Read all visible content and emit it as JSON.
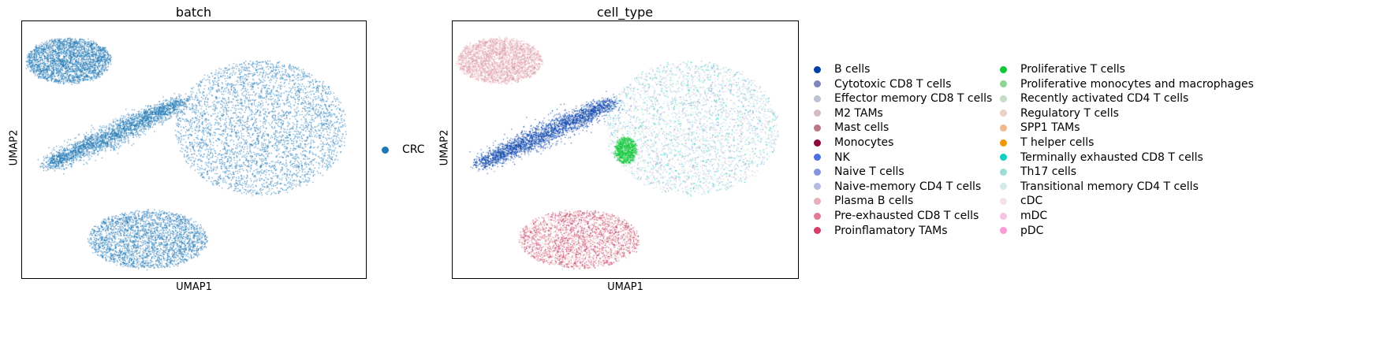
{
  "chart_data": [
    {
      "type": "scatter",
      "title": "batch",
      "xlabel": "UMAP1",
      "ylabel": "UMAP2",
      "legend": {
        "placement": "right",
        "entries": [
          {
            "label": "CRC",
            "color": "#1f77b4"
          }
        ]
      },
      "clusters": [
        {
          "label": "CRC",
          "shape": "top-left blob",
          "center": [
            -8.5,
            9.5
          ],
          "extent": [
            3.2,
            2.0
          ],
          "relative_density": 1.0
        },
        {
          "label": "CRC",
          "shape": "elongated diagonal",
          "center": [
            -5.0,
            3.0
          ],
          "extent": [
            5.0,
            1.6
          ],
          "relative_density": 1.0
        },
        {
          "label": "CRC",
          "shape": "large fan",
          "center": [
            6.0,
            3.5
          ],
          "extent": [
            6.5,
            6.0
          ],
          "relative_density": 1.4
        },
        {
          "label": "CRC",
          "shape": "bottom blob",
          "center": [
            -2.5,
            -6.5
          ],
          "extent": [
            4.5,
            2.6
          ],
          "relative_density": 1.0
        }
      ],
      "grid": false
    },
    {
      "type": "scatter",
      "title": "cell_type",
      "xlabel": "UMAP1",
      "ylabel": "UMAP2",
      "grid": false,
      "legend": {
        "placement": "right",
        "columns": 2,
        "entries": [
          {
            "label": "B cells",
            "color": "#023fa5"
          },
          {
            "label": "Cytotoxic CD8 T cells",
            "color": "#7d87b9"
          },
          {
            "label": "Effector memory CD8 T cells",
            "color": "#bec1d4"
          },
          {
            "label": "M2 TAMs",
            "color": "#d6bcc0"
          },
          {
            "label": "Mast cells",
            "color": "#bb7784"
          },
          {
            "label": "Monocytes",
            "color": "#8e063b"
          },
          {
            "label": "NK",
            "color": "#4a6fe3"
          },
          {
            "label": "Naive T cells",
            "color": "#8595e1"
          },
          {
            "label": "Naive-memory CD4 T cells",
            "color": "#b5bbe3"
          },
          {
            "label": "Plasma B cells",
            "color": "#e6afb9"
          },
          {
            "label": "Pre-exhausted CD8 T cells",
            "color": "#e07b91"
          },
          {
            "label": "Proinflamatory TAMs",
            "color": "#d33f6a"
          },
          {
            "label": "Proliferative T cells",
            "color": "#11c638"
          },
          {
            "label": "Proliferative monocytes and macrophages",
            "color": "#8dd593"
          },
          {
            "label": "Recently activated CD4 T cells",
            "color": "#c6dec7"
          },
          {
            "label": "Regulatory T cells",
            "color": "#ead3c6"
          },
          {
            "label": "SPP1 TAMs",
            "color": "#f0b98d"
          },
          {
            "label": "T helper cells",
            "color": "#ef9708"
          },
          {
            "label": "Terminally exhausted CD8 T cells",
            "color": "#0fcfc0"
          },
          {
            "label": "Th17 cells",
            "color": "#9cded6"
          },
          {
            "label": "Transitional memory CD4 T cells",
            "color": "#d5eae7"
          },
          {
            "label": "cDC",
            "color": "#f3e1eb"
          },
          {
            "label": "mDC",
            "color": "#f6c4e1"
          },
          {
            "label": "pDC",
            "color": "#f79cd4"
          }
        ]
      },
      "clusters": [
        {
          "shape": "top-left blob",
          "center": [
            -8.5,
            9.5
          ],
          "extent": [
            3.2,
            2.0
          ],
          "mix": {
            "Plasma B cells": 0.85,
            "Mast cells": 0.1,
            "Pre-exhausted CD8 T cells": 0.05
          },
          "relative_density": 1.0
        },
        {
          "shape": "elongated diagonal",
          "center": [
            -5.0,
            3.0
          ],
          "extent": [
            5.0,
            1.6
          ],
          "mix": {
            "B cells": 0.9,
            "NK": 0.07,
            "Naive T cells": 0.03
          },
          "relative_density": 1.0
        },
        {
          "shape": "large fan",
          "center": [
            6.0,
            3.5
          ],
          "extent": [
            6.5,
            6.0
          ],
          "mix": {
            "Effector memory CD8 T cells": 0.18,
            "Naive-memory CD4 T cells": 0.14,
            "Recently activated CD4 T cells": 0.14,
            "Transitional memory CD4 T cells": 0.12,
            "Terminally exhausted CD8 T cells": 0.16,
            "Th17 cells": 0.1,
            "Cytotoxic CD8 T cells": 0.08,
            "Naive T cells": 0.05,
            "Regulatory T cells": 0.03
          },
          "relative_density": 1.4
        },
        {
          "shape": "proliferating patch",
          "center": [
            1.0,
            1.5
          ],
          "extent": [
            0.8,
            1.2
          ],
          "mix": {
            "Proliferative T cells": 1.0
          },
          "relative_density": 0.3
        },
        {
          "shape": "bottom blob",
          "center": [
            -2.5,
            -6.5
          ],
          "extent": [
            4.5,
            2.6
          ],
          "mix": {
            "Proinflamatory TAMs": 0.45,
            "M2 TAMs": 0.25,
            "Monocytes": 0.12,
            "SPP1 TAMs": 0.08,
            "cDC": 0.05,
            "mDC": 0.03,
            "pDC": 0.02
          },
          "relative_density": 1.0
        }
      ]
    }
  ]
}
